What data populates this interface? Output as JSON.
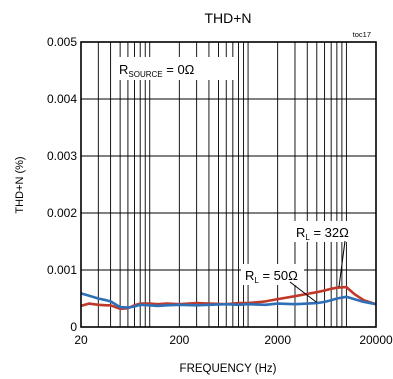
{
  "chart_data": {
    "type": "line",
    "title": "THD+N",
    "tag": "toc17",
    "condition_label": "R",
    "condition_sub": "SOURCE",
    "condition_value": " = 0Ω",
    "xlabel": "FREQUENCY (Hz)",
    "ylabel": "THD+N (%)",
    "x_scale": "log",
    "xlim": [
      20,
      20000
    ],
    "ylim": [
      0,
      0.005
    ],
    "x_ticks": [
      20,
      200,
      2000,
      20000
    ],
    "x_tick_labels": [
      "20",
      "200",
      "2000",
      "20000"
    ],
    "y_ticks": [
      0,
      0.001,
      0.002,
      0.003,
      0.004,
      0.005
    ],
    "y_tick_labels": [
      "0",
      "0.001",
      "0.002",
      "0.003",
      "0.004",
      "0.005"
    ],
    "grid": true,
    "series": [
      {
        "label_main": "R",
        "label_sub": "L",
        "label_value": " = 32Ω",
        "color": "#c0392b",
        "x": [
          20,
          24,
          30,
          36,
          40,
          50,
          60,
          70,
          80,
          100,
          120,
          150,
          200,
          300,
          400,
          600,
          800,
          1000,
          1500,
          2000,
          3000,
          4000,
          5000,
          6000,
          7000,
          8000,
          10000,
          12000,
          15000,
          20000
        ],
        "y": [
          0.00037,
          0.00041,
          0.00039,
          0.00038,
          0.00038,
          0.00032,
          0.00033,
          0.00038,
          0.00041,
          0.00041,
          0.0004,
          0.00041,
          0.0004,
          0.00042,
          0.00041,
          0.0004,
          0.00042,
          0.00042,
          0.00045,
          0.00049,
          0.00054,
          0.00058,
          0.00061,
          0.00064,
          0.00067,
          0.00069,
          0.0007,
          0.00058,
          0.00047,
          0.0004
        ]
      },
      {
        "label_main": "R",
        "label_sub": "L",
        "label_value": " = 50Ω",
        "color": "#2e6fb5",
        "x": [
          20,
          24,
          30,
          36,
          40,
          50,
          60,
          70,
          80,
          100,
          120,
          150,
          200,
          300,
          400,
          600,
          800,
          1000,
          1500,
          2000,
          3000,
          4000,
          5000,
          6000,
          7000,
          8000,
          10000,
          12000,
          15000,
          20000
        ],
        "y": [
          0.00059,
          0.00055,
          0.0005,
          0.00047,
          0.00045,
          0.00035,
          0.00034,
          0.00036,
          0.00039,
          0.00038,
          0.00037,
          0.00038,
          0.00039,
          0.00038,
          0.00039,
          0.0004,
          0.00039,
          0.0004,
          0.00039,
          0.00041,
          0.0004,
          0.00041,
          0.00042,
          0.00044,
          0.00047,
          0.0005,
          0.00053,
          0.00049,
          0.00044,
          0.0004
        ]
      }
    ]
  }
}
